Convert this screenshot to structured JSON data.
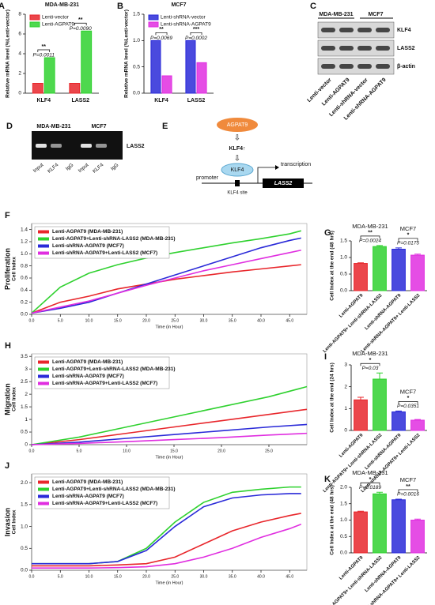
{
  "chart_data": [
    {
      "label": "A",
      "type": "bar",
      "title": "MDA-MB-231",
      "y_label": "Relative mRNA level (%Lenti-vector)",
      "categories": [
        "KLF4",
        "LASS2"
      ],
      "series": [
        {
          "name": "Lenti-vector",
          "color": "#e8262b",
          "values": [
            1.0,
            1.0
          ]
        },
        {
          "name": "Lenti-AGPAT9",
          "color": "#2fd12f",
          "values": [
            3.6,
            6.3
          ]
        }
      ],
      "ylim": [
        0,
        8
      ],
      "yticks": [
        0,
        2,
        4,
        6,
        8
      ],
      "annotations": [
        {
          "stars": "**",
          "p": "P=0.0011"
        },
        {
          "stars": "**",
          "p": "P=0.0090"
        }
      ]
    },
    {
      "label": "B",
      "type": "bar",
      "title": "MCF7",
      "y_label": "Relative mRNA level (%Lenti-vector)",
      "categories": [
        "KLF4",
        "LASS2"
      ],
      "series": [
        {
          "name": "Lenti-shRNA-vector",
          "color": "#2a2ad8",
          "values": [
            1.0,
            1.0
          ]
        },
        {
          "name": "Lenti-shRNA-AGPAT9",
          "color": "#e02ee0",
          "values": [
            0.33,
            0.58
          ]
        }
      ],
      "ylim": [
        0,
        1.5
      ],
      "yticks": [
        {
          "value": 0,
          "label": "0.0"
        },
        0.5,
        {
          "value": 1,
          "label": "1.0"
        },
        1.5
      ],
      "annotations": [
        {
          "stars": "**",
          "p": "P=0.0069"
        },
        {
          "stars": "***",
          "p": "P=0.0002"
        }
      ]
    },
    {
      "label": "F",
      "type": "line",
      "side_label": "Proliferation",
      "x_label": "Time (in Hour)",
      "y_label": "Cell Index",
      "x": [
        0,
        5,
        10,
        15,
        20,
        25,
        30,
        35,
        40,
        45,
        47
      ],
      "series": [
        {
          "name": "Lenti-AGPAT9 (MDA-MB-231)",
          "color": "#e8262b",
          "values": [
            0.02,
            0.2,
            0.3,
            0.42,
            0.5,
            0.58,
            0.64,
            0.7,
            0.75,
            0.8,
            0.82
          ]
        },
        {
          "name": "Lenti-AGPAT9+Lenti-shRNA-LASS2 (MDA-MB-231)",
          "color": "#2fd12f",
          "values": [
            0.02,
            0.45,
            0.68,
            0.82,
            0.93,
            1.02,
            1.1,
            1.18,
            1.25,
            1.33,
            1.38
          ]
        },
        {
          "name": "Lenti-shRNA-AGPAT9 (MCF7)",
          "color": "#2a2ad8",
          "values": [
            0.02,
            0.1,
            0.2,
            0.35,
            0.5,
            0.65,
            0.8,
            0.95,
            1.1,
            1.22,
            1.26
          ]
        },
        {
          "name": "Lenti-shRNA-AGPAT9+Lenti-LASS2 (MCF7)",
          "color": "#e02ee0",
          "values": [
            0.02,
            0.12,
            0.22,
            0.35,
            0.48,
            0.6,
            0.72,
            0.82,
            0.92,
            1.02,
            1.06
          ]
        }
      ],
      "xlim": [
        0,
        48
      ],
      "xticks": [
        {
          "value": 0,
          "label": "0.0"
        },
        {
          "value": 5,
          "label": "5.0"
        },
        {
          "value": 10,
          "label": "10.0"
        },
        {
          "value": 15,
          "label": "15.0"
        },
        {
          "value": 20,
          "label": "20.0"
        },
        {
          "value": 25,
          "label": "25.0"
        },
        {
          "value": 30,
          "label": "30.0"
        },
        {
          "value": 35,
          "label": "35.0"
        },
        {
          "value": 40,
          "label": "40.0"
        },
        {
          "value": 45,
          "label": "45.0"
        }
      ],
      "ylim": [
        0,
        1.5
      ],
      "yticks": [
        {
          "value": 0,
          "label": "0.0"
        },
        0.2,
        0.4,
        0.6,
        0.8,
        {
          "value": 1,
          "label": "1.0"
        },
        1.2,
        1.4
      ]
    },
    {
      "label": "G",
      "type": "bar",
      "y_label": "Cell Index at the end (48 hrs)",
      "categories": [
        "Lenti-AGPAT9",
        "Lenti-AGPAT9+ Lenti-shRNA-LASS2",
        "Lenti-shRNA-AGPAT9",
        "Lenti-shRNA-AGPAT9+ Lenti-LASS2"
      ],
      "values": [
        0.82,
        1.33,
        1.25,
        1.07
      ],
      "errors": [
        0.02,
        0.03,
        0.04,
        0.03
      ],
      "colors": [
        "#e8262b",
        "#2fd12f",
        "#2a2ad8",
        "#e02ee0"
      ],
      "ylim": [
        0,
        1.5
      ],
      "yticks": [
        {
          "value": 0,
          "label": "0.0"
        },
        0.5,
        {
          "value": 1,
          "label": "1.0"
        },
        1.5
      ],
      "groups": [
        {
          "name": "MDA-MB-231",
          "stars": "**",
          "p": "P=0.0024"
        },
        {
          "name": "MCF7",
          "stars": "*",
          "p": "P=0.0175"
        }
      ]
    },
    {
      "label": "H",
      "type": "line",
      "side_label": "Migration",
      "x_label": "Time (in Hour)",
      "y_label": "Cell Index",
      "x": [
        0,
        5,
        10,
        15,
        20,
        25,
        29
      ],
      "series": [
        {
          "name": "Lenti-AGPAT9 (MDA-MB-231)",
          "color": "#e8262b",
          "values": [
            0,
            0.2,
            0.45,
            0.7,
            0.95,
            1.2,
            1.4
          ]
        },
        {
          "name": "Lenti-AGPAT9+Lenti-shRNA-LASS2 (MDA-MB-231)",
          "color": "#2fd12f",
          "values": [
            0,
            0.3,
            0.7,
            1.1,
            1.5,
            1.9,
            2.3
          ]
        },
        {
          "name": "Lenti-shRNA-AGPAT9 (MCF7)",
          "color": "#2a2ad8",
          "values": [
            0,
            0.1,
            0.25,
            0.4,
            0.55,
            0.7,
            0.8
          ]
        },
        {
          "name": "Lenti-shRNA-AGPAT9+Lenti-LASS2 (MCF7)",
          "color": "#e02ee0",
          "values": [
            0,
            0.05,
            0.12,
            0.2,
            0.28,
            0.38,
            0.45
          ]
        }
      ],
      "xlim": [
        0,
        29
      ],
      "xticks": [
        {
          "value": 0,
          "label": "0.0"
        },
        {
          "value": 5,
          "label": "5.0"
        },
        {
          "value": 10,
          "label": "10.0"
        },
        {
          "value": 15,
          "label": "15.0"
        },
        {
          "value": 20,
          "label": "20.0"
        },
        {
          "value": 25,
          "label": "25.0"
        }
      ],
      "ylim": [
        0,
        3.6
      ],
      "yticks": [
        0,
        0.5,
        1,
        1.5,
        2,
        2.5,
        3,
        3.5
      ]
    },
    {
      "label": "I",
      "type": "bar",
      "y_label": "Cell Index at the end (24 hrs)",
      "categories": [
        "Lenti-AGPAT9",
        "Lenti-AGPAT9+ Lenti-shRNA-LASS2",
        "Lenti-shRNA-AGPAT9",
        "Lenti-shRNA-AGPAT9+ Lenti-LASS2"
      ],
      "values": [
        1.4,
        2.35,
        0.85,
        0.47
      ],
      "errors": [
        0.12,
        0.28,
        0.04,
        0.03
      ],
      "colors": [
        "#e8262b",
        "#2fd12f",
        "#2a2ad8",
        "#e02ee0"
      ],
      "ylim": [
        0,
        3
      ],
      "yticks": [
        0,
        1,
        2,
        3
      ],
      "groups": [
        {
          "name": "MDA-MB-231",
          "stars": "*",
          "p": "P=0.03"
        },
        {
          "name": "MCF7",
          "stars": "*",
          "p": "P=0.0351"
        }
      ]
    },
    {
      "label": "J",
      "type": "line",
      "side_label": "Invasion",
      "x_label": "Time (in Hour)",
      "y_label": "Cell Index",
      "x": [
        0,
        5,
        10,
        15,
        20,
        25,
        30,
        35,
        40,
        45,
        47
      ],
      "series": [
        {
          "name": "Lenti-AGPAT9 (MDA-MB-231)",
          "color": "#e8262b",
          "values": [
            0.1,
            0.1,
            0.1,
            0.12,
            0.15,
            0.3,
            0.6,
            0.9,
            1.1,
            1.25,
            1.3
          ]
        },
        {
          "name": "Lenti-AGPAT9+Lenti-shRNA-LASS2 (MDA-MB-231)",
          "color": "#2fd12f",
          "values": [
            0.15,
            0.15,
            0.15,
            0.2,
            0.5,
            1.1,
            1.55,
            1.78,
            1.85,
            1.9,
            1.9
          ]
        },
        {
          "name": "Lenti-shRNA-AGPAT9 (MCF7)",
          "color": "#2a2ad8",
          "values": [
            0.15,
            0.15,
            0.15,
            0.2,
            0.45,
            1.0,
            1.45,
            1.65,
            1.72,
            1.75,
            1.75
          ]
        },
        {
          "name": "Lenti-shRNA-AGPAT9+Lenti-LASS2 (MCF7)",
          "color": "#e02ee0",
          "values": [
            0.05,
            0.05,
            0.05,
            0.06,
            0.08,
            0.15,
            0.3,
            0.5,
            0.75,
            0.95,
            1.05
          ]
        }
      ],
      "xlim": [
        0,
        48
      ],
      "xticks": [
        {
          "value": 0,
          "label": "0.0"
        },
        {
          "value": 5,
          "label": "5.0"
        },
        {
          "value": 10,
          "label": "10.0"
        },
        {
          "value": 15,
          "label": "15.0"
        },
        {
          "value": 20,
          "label": "20.0"
        },
        {
          "value": 25,
          "label": "25.0"
        },
        {
          "value": 30,
          "label": "30.0"
        },
        {
          "value": 35,
          "label": "35.0"
        },
        {
          "value": 40,
          "label": "40.0"
        },
        {
          "value": 45,
          "label": "45.0"
        }
      ],
      "ylim": [
        0,
        2.2
      ],
      "yticks": [
        {
          "value": 0,
          "label": "0.0"
        },
        0.5,
        {
          "value": 1,
          "label": "1.0"
        },
        1.5,
        {
          "value": 2,
          "label": "2.0"
        }
      ]
    },
    {
      "label": "K",
      "type": "bar",
      "y_label": "Cell Index at the end (48 hrs)",
      "categories": [
        "Lenti-AGPAT9",
        "Lenti-AGPAT9+ Lenti-shRNA-LASS2",
        "Lenti-shRNA-AGPAT9",
        "Lenti-shRNA-AGPAT9+ Lenti-LASS2"
      ],
      "values": [
        1.25,
        1.8,
        1.62,
        1.0
      ],
      "errors": [
        0.02,
        0.05,
        0.02,
        0.03
      ],
      "colors": [
        "#e8262b",
        "#2fd12f",
        "#2a2ad8",
        "#e02ee0"
      ],
      "ylim": [
        0,
        2
      ],
      "yticks": [
        {
          "value": 0,
          "label": "0.0"
        },
        0.5,
        {
          "value": 1,
          "label": "1.0"
        },
        1.5,
        {
          "value": 2,
          "label": "2.0"
        }
      ],
      "groups": [
        {
          "name": "MDA-MB-231",
          "stars": "*",
          "p": "P=0.0189"
        },
        {
          "name": "MCF7",
          "stars": "**",
          "p": "P=0.0016"
        }
      ]
    }
  ],
  "blot": {
    "label": "C",
    "groups": [
      "MDA-MB-231",
      "MCF7"
    ],
    "bands": [
      "KLF4",
      "LASS2",
      "β-actin"
    ],
    "lanes": [
      "Lenti-vector",
      "Lenti-AGPAT9",
      "Lenti-shRNA-vector",
      "Lenti-shRNA-AGPAT9"
    ]
  },
  "gel": {
    "label": "D",
    "groups": [
      "MDA-MB-231",
      "MCF7"
    ],
    "band": "LASS2",
    "lanes": [
      "Input",
      "KLF4",
      "IgG",
      "Input",
      "KLF4",
      "IgG"
    ]
  },
  "diagram": {
    "label": "E",
    "inducer": "AGPAT9",
    "effect": "KLF4↑",
    "factor": "KLF4",
    "promoter": "promoter",
    "transcription": "transcription",
    "gene": "LASS2",
    "site": "KLF4 site"
  }
}
